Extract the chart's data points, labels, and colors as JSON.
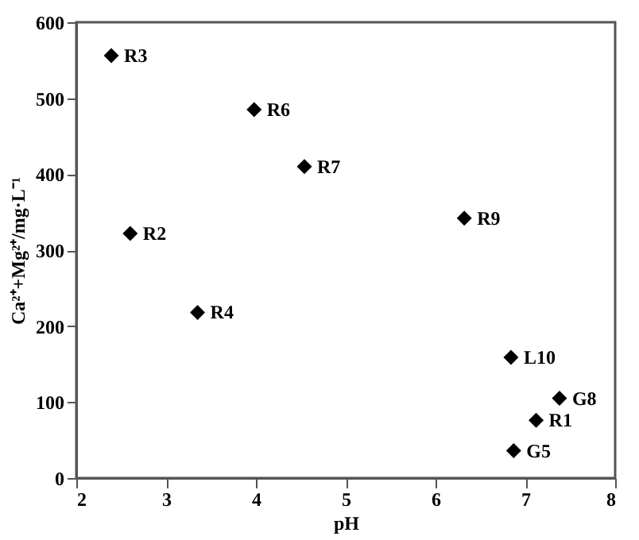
{
  "chart_data": {
    "type": "scatter",
    "xlabel": "pH",
    "ylabel": "Ca²⁺+Mg²⁺/mg·L⁻¹",
    "x": [
      2.39,
      2.6,
      3.35,
      3.98,
      4.54,
      6.32,
      6.84,
      7.38,
      7.12,
      6.87
    ],
    "series": [
      {
        "color": "#000000",
        "values": [
          556,
          322,
          218,
          485,
          410,
          342,
          159,
          105,
          76,
          36
        ]
      }
    ],
    "xlim": [
      2,
      8
    ],
    "xticks": [
      2,
      3,
      4,
      5,
      6,
      7,
      8
    ],
    "ylim": [
      0,
      600
    ],
    "yticks": [
      0,
      100,
      200,
      300,
      400,
      500,
      600
    ],
    "marker": "diamond",
    "grid": false,
    "annotations": [
      {
        "text": "R3",
        "x": 2.39,
        "y": 556
      },
      {
        "text": "R2",
        "x": 2.6,
        "y": 322
      },
      {
        "text": "R4",
        "x": 3.35,
        "y": 218
      },
      {
        "text": "R6",
        "x": 3.98,
        "y": 485
      },
      {
        "text": "R7",
        "x": 4.54,
        "y": 410
      },
      {
        "text": "R9",
        "x": 6.32,
        "y": 342
      },
      {
        "text": "L10",
        "x": 6.84,
        "y": 159
      },
      {
        "text": "G8",
        "x": 7.38,
        "y": 105
      },
      {
        "text": "R1",
        "x": 7.12,
        "y": 76
      },
      {
        "text": "G5",
        "x": 6.87,
        "y": 36
      }
    ]
  }
}
